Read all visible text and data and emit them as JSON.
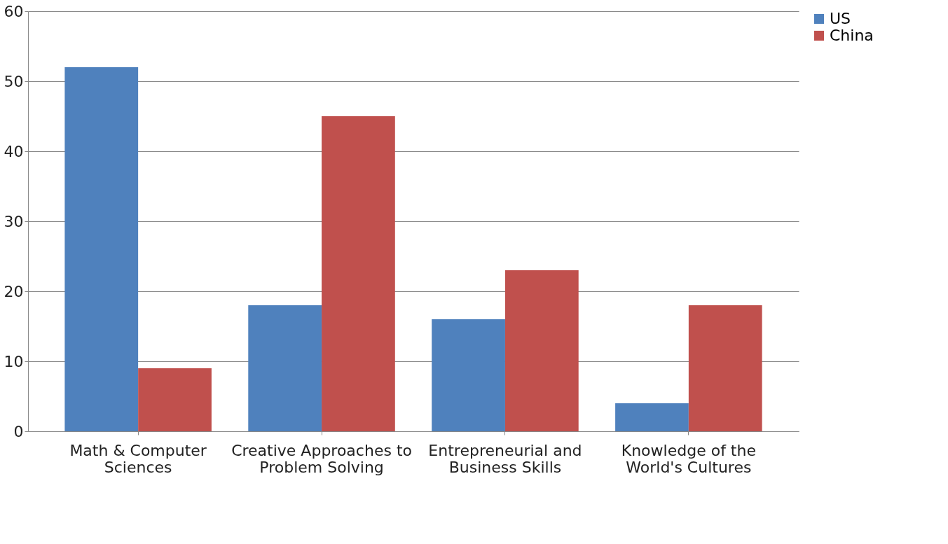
{
  "chart_data": {
    "type": "bar",
    "categories": [
      "Math & Computer Sciences",
      "Creative Approaches to Problem Solving",
      "Entrepreneurial and Business Skills",
      "Knowledge of the World's Cultures"
    ],
    "series": [
      {
        "name": "US",
        "color": "#4f81bd",
        "values": [
          52,
          18,
          16,
          4
        ]
      },
      {
        "name": "China",
        "color": "#c0504d",
        "values": [
          9,
          45,
          23,
          18
        ]
      }
    ],
    "ylim": [
      0,
      60
    ],
    "yticks": [
      0,
      10,
      20,
      30,
      40,
      50,
      60
    ],
    "grid": "y",
    "legend": "right"
  }
}
